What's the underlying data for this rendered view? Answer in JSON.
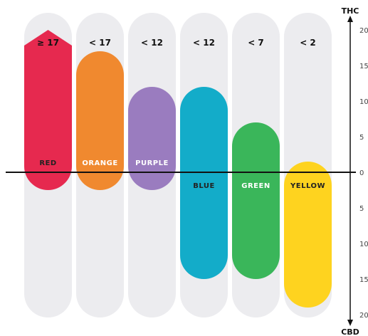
{
  "chart_data": {
    "type": "bar",
    "title": "",
    "axis_top_label": "THC",
    "axis_bottom_label": "CBD",
    "thc_range": [
      0,
      20
    ],
    "cbd_range": [
      0,
      20
    ],
    "thc_ticks": [
      "20",
      "15",
      "10",
      "5",
      "0"
    ],
    "cbd_ticks": [
      "5",
      "10",
      "15",
      "20"
    ],
    "grid": false,
    "categories": [
      {
        "name": "RED",
        "threshold": "≥ 17",
        "thc": 20,
        "cbd": 2.5,
        "color": "#e6294f",
        "label_color": "#222222",
        "top_shape": "arrow"
      },
      {
        "name": "ORANGE",
        "threshold": "< 17",
        "thc": 17,
        "cbd": 2.5,
        "color": "#f0892f",
        "label_color": "#ffffff",
        "top_shape": "round"
      },
      {
        "name": "PURPLE",
        "threshold": "< 12",
        "thc": 12,
        "cbd": 2.5,
        "color": "#9a7cbf",
        "label_color": "#ffffff",
        "top_shape": "round"
      },
      {
        "name": "BLUE",
        "threshold": "< 12",
        "thc": 12,
        "cbd": 15,
        "color": "#13acc9",
        "label_color": "#222222",
        "top_shape": "round"
      },
      {
        "name": "GREEN",
        "threshold": "< 7",
        "thc": 7,
        "cbd": 15,
        "color": "#3ab65a",
        "label_color": "#ffffff",
        "top_shape": "round"
      },
      {
        "name": "YELLOW",
        "threshold": "< 2",
        "thc": 1.5,
        "cbd": 19,
        "color": "#fed31f",
        "label_color": "#222222",
        "top_shape": "round"
      }
    ]
  }
}
